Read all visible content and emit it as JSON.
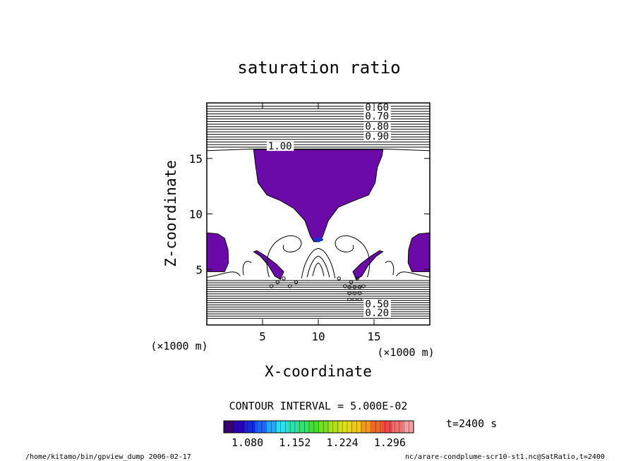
{
  "chart_data": {
    "type": "contour",
    "title": "saturation ratio",
    "xlabel": "X-coordinate",
    "ylabel": "Z-coordinate",
    "xunit": "(×1000 m)",
    "yunit": "(×1000 m)",
    "xlim": [
      0,
      20
    ],
    "ylim": [
      0,
      20
    ],
    "x_ticks": [
      5,
      10,
      15
    ],
    "y_ticks": [
      5,
      10,
      15
    ],
    "contour_labels": [
      {
        "text": "0.60",
        "x": 14.2,
        "y": 19.3
      },
      {
        "text": "0.70",
        "x": 14.2,
        "y": 18.5
      },
      {
        "text": "0.80",
        "x": 14.2,
        "y": 17.6
      },
      {
        "text": "0.90",
        "x": 14.2,
        "y": 16.7
      },
      {
        "text": "1.00",
        "x": 5.5,
        "y": 15.8
      },
      {
        "text": "0.50",
        "x": 14.2,
        "y": 1.6
      },
      {
        "text": "0.20",
        "x": 14.2,
        "y": 0.8
      }
    ],
    "saturated_regions": [
      {
        "name": "upper",
        "points": [
          [
            4.2,
            15.8
          ],
          [
            15.8,
            15.8
          ],
          [
            15.7,
            15.2
          ],
          [
            15.3,
            14.2
          ],
          [
            15.1,
            12.8
          ],
          [
            14.5,
            11.7
          ],
          [
            13.2,
            11.2
          ],
          [
            11.8,
            10.6
          ],
          [
            10.9,
            9.4
          ],
          [
            10.4,
            8.0
          ],
          [
            10.1,
            7.5
          ],
          [
            9.6,
            7.5
          ],
          [
            9.3,
            8.0
          ],
          [
            8.8,
            9.4
          ],
          [
            7.8,
            10.5
          ],
          [
            6.6,
            11.2
          ],
          [
            5.4,
            11.7
          ],
          [
            4.6,
            12.8
          ],
          [
            4.4,
            14.2
          ]
        ]
      },
      {
        "name": "left-edge",
        "points": [
          [
            0,
            8.3
          ],
          [
            1.0,
            8.2
          ],
          [
            1.6,
            7.8
          ],
          [
            1.9,
            6.8
          ],
          [
            1.95,
            5.6
          ],
          [
            1.6,
            4.8
          ],
          [
            0.6,
            4.8
          ],
          [
            0,
            4.8
          ]
        ]
      },
      {
        "name": "right-edge",
        "points": [
          [
            20,
            8.3
          ],
          [
            19.0,
            8.2
          ],
          [
            18.4,
            7.8
          ],
          [
            18.1,
            6.8
          ],
          [
            18.05,
            5.6
          ],
          [
            18.4,
            4.8
          ],
          [
            19.4,
            4.8
          ],
          [
            20,
            4.8
          ]
        ]
      },
      {
        "name": "left-plume",
        "points": [
          [
            4.2,
            6.6
          ],
          [
            4.8,
            6.2
          ],
          [
            5.5,
            5.4
          ],
          [
            6.1,
            4.4
          ],
          [
            6.6,
            4.1
          ],
          [
            6.9,
            4.8
          ],
          [
            6.2,
            5.5
          ],
          [
            5.3,
            6.2
          ],
          [
            4.5,
            6.7
          ]
        ]
      },
      {
        "name": "right-plume",
        "points": [
          [
            15.8,
            6.6
          ],
          [
            15.2,
            6.2
          ],
          [
            14.5,
            5.4
          ],
          [
            13.9,
            4.4
          ],
          [
            13.4,
            4.1
          ],
          [
            13.1,
            4.8
          ],
          [
            13.8,
            5.5
          ],
          [
            14.7,
            6.2
          ],
          [
            15.5,
            6.7
          ]
        ]
      }
    ],
    "colorbar": {
      "min": 1.044,
      "max": 1.332,
      "tick_labels": [
        {
          "value": 1.08,
          "text": "1.080"
        },
        {
          "value": 1.152,
          "text": "1.152"
        },
        {
          "value": 1.224,
          "text": "1.224"
        },
        {
          "value": 1.296,
          "text": "1.296"
        }
      ],
      "colors": [
        "#3a0070",
        "#2a00b8",
        "#1428e0",
        "#1c64ff",
        "#22a8ff",
        "#28e0f0",
        "#2ce0b0",
        "#34e070",
        "#40e030",
        "#78e020",
        "#b0e018",
        "#dce014",
        "#f0c814",
        "#f49818",
        "#f06828",
        "#f04848",
        "#f07070",
        "#f0a0a0"
      ]
    },
    "fill_color": "#6b0aa8",
    "contour_interval": "CONTOUR INTERVAL = 5.000E-02"
  },
  "footer": {
    "left": "/home/kitamo/bin/gpview_dump  2006-02-17",
    "right": "nc/arare-condplume-scr10-st1.nc@SatRatio,t=2400",
    "time": "t=2400 s"
  }
}
